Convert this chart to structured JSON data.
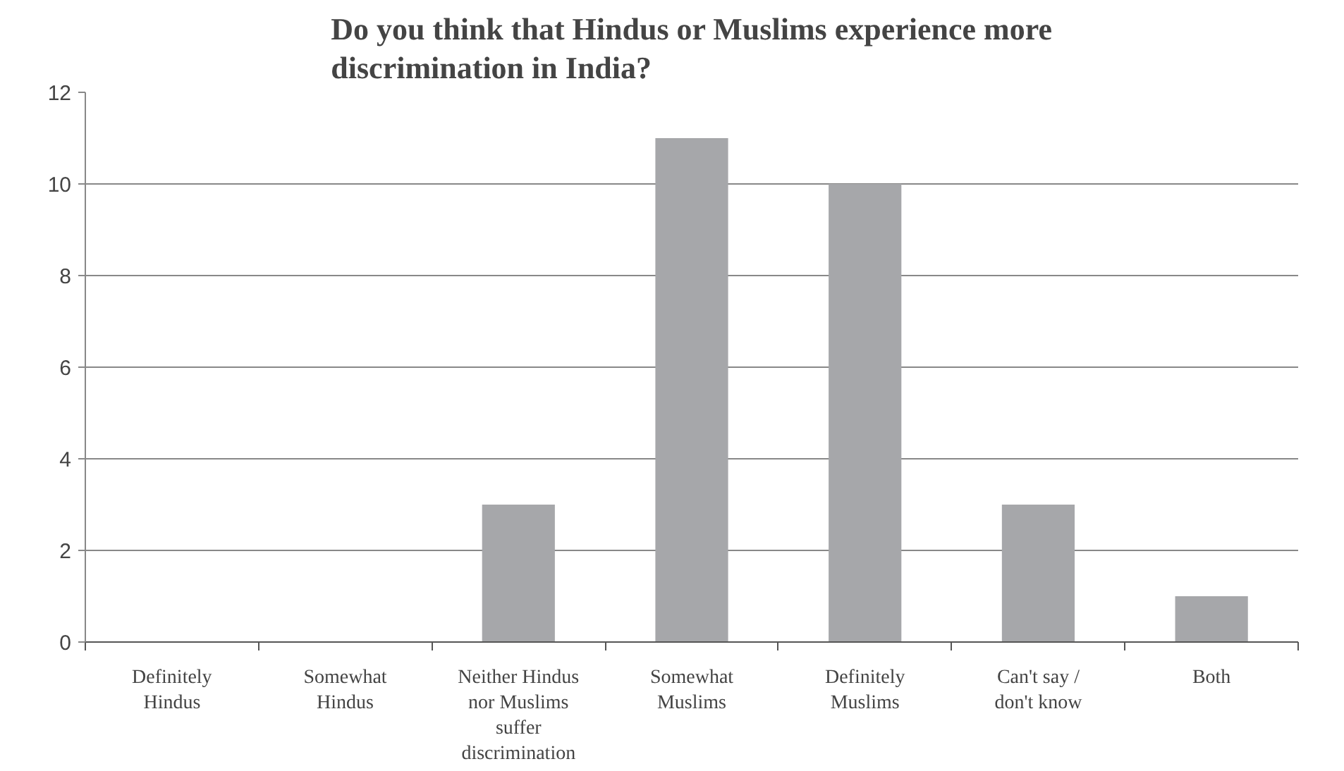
{
  "chart_data": {
    "type": "bar",
    "title": "Do you think that Hindus or Muslims experience more discrimination in India?",
    "categories": [
      "Definitely Hindus",
      "Somewhat Hindus",
      "Neither Hindus nor Muslims suffer discrimination",
      "Somewhat Muslims",
      "Definitely Muslims",
      "Can't say / don't know",
      "Both"
    ],
    "values": [
      0,
      0,
      3,
      11,
      10,
      3,
      1
    ],
    "color": "#a6a7aa",
    "ylim": [
      0,
      12
    ],
    "yticks": [
      0,
      2,
      4,
      6,
      8,
      10,
      12
    ],
    "grid": "y"
  }
}
